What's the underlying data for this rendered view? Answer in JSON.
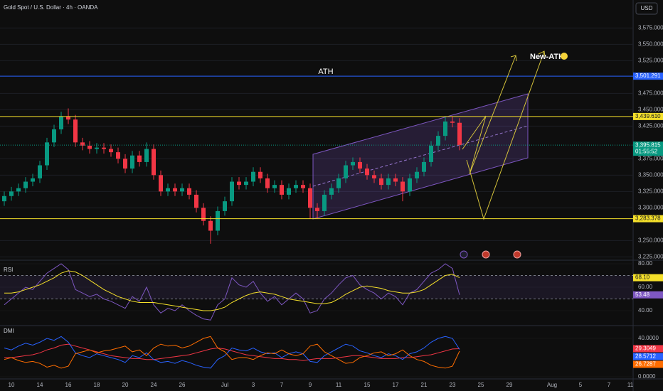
{
  "header": {
    "symbol": "Gold Spot / U.S. Dollar · 4h · OANDA",
    "currency": "USD"
  },
  "chart_data": [
    {
      "type": "candlestick",
      "categories": [
        null,
        "10",
        null,
        null,
        null,
        "14",
        null,
        null,
        null,
        "16",
        null,
        null,
        null,
        "18",
        null,
        null,
        null,
        "20",
        null,
        null,
        null,
        "24",
        null,
        null,
        null,
        "26",
        null,
        null,
        null,
        null,
        null,
        "Jul",
        null,
        null,
        null,
        "3",
        null,
        null,
        null,
        "7",
        null,
        null,
        null,
        "9",
        null,
        null,
        null,
        "11",
        null,
        null,
        null,
        "15",
        null,
        null,
        null,
        "17",
        null,
        null,
        null,
        "21",
        null,
        null,
        null,
        "23",
        null,
        null,
        null,
        "25",
        null,
        null,
        null,
        "29",
        null,
        null,
        null,
        null,
        null,
        "Aug",
        null,
        null,
        null,
        "5",
        null,
        null,
        null,
        "7",
        null,
        null,
        "11"
      ],
      "open": [
        3310,
        3318,
        3325,
        3330,
        3340,
        3345,
        3365,
        3400,
        3420,
        3440,
        3435,
        3400,
        3395,
        3390,
        3392,
        3390,
        3385,
        3375,
        3360,
        3380,
        3370,
        3390,
        3350,
        3325,
        3330,
        3325,
        3330,
        3320,
        3300,
        3280,
        3265,
        3295,
        3310,
        3340,
        3335,
        3340,
        3355,
        3345,
        3330,
        3335,
        3320,
        3330,
        3335,
        3330,
        3300,
        3295,
        3320,
        3330,
        3345,
        3365,
        3370,
        3360,
        3350,
        3345,
        3335,
        3345,
        3340,
        3325,
        3345,
        3355,
        3370,
        3395,
        3410,
        3432,
        3430,
        null,
        null,
        null,
        null,
        null,
        null,
        null,
        null,
        null,
        null,
        null,
        null,
        null,
        null,
        null,
        null,
        null,
        null,
        null,
        null,
        null,
        null,
        null,
        null
      ],
      "high": [
        3325,
        3332,
        3337,
        3347,
        3352,
        3372,
        3407,
        3427,
        3447,
        3452,
        3442,
        3407,
        3402,
        3399,
        3399,
        3397,
        3392,
        3382,
        3387,
        3387,
        3400,
        3397,
        3357,
        3337,
        3337,
        3337,
        3337,
        3327,
        3307,
        3287,
        3302,
        3317,
        3347,
        3347,
        3347,
        3362,
        3362,
        3352,
        3342,
        3342,
        3337,
        3342,
        3342,
        3337,
        3307,
        3327,
        3337,
        3352,
        3372,
        3377,
        3377,
        3367,
        3357,
        3352,
        3352,
        3352,
        3347,
        3352,
        3362,
        3377,
        3402,
        3417,
        3439,
        3439,
        3437,
        null,
        null,
        null,
        null,
        null,
        null,
        null,
        null,
        null,
        null,
        null,
        null,
        null,
        null,
        null,
        null,
        null,
        null,
        null,
        null,
        null,
        null,
        null,
        null
      ],
      "low": [
        3303,
        3311,
        3318,
        3323,
        3333,
        3338,
        3358,
        3393,
        3413,
        3428,
        3393,
        3388,
        3383,
        3383,
        3383,
        3378,
        3368,
        3353,
        3353,
        3363,
        3363,
        3343,
        3318,
        3318,
        3318,
        3318,
        3313,
        3293,
        3273,
        3245,
        3258,
        3288,
        3303,
        3328,
        3328,
        3333,
        3338,
        3323,
        3323,
        3313,
        3313,
        3323,
        3323,
        3283,
        3284,
        3288,
        3313,
        3323,
        3338,
        3358,
        3353,
        3343,
        3338,
        3328,
        3328,
        3333,
        3310,
        3318,
        3338,
        3348,
        3363,
        3388,
        3403,
        3423,
        3388,
        null,
        null,
        null,
        null,
        null,
        null,
        null,
        null,
        null,
        null,
        null,
        null,
        null,
        null,
        null,
        null,
        null,
        null,
        null,
        null,
        null,
        null,
        null,
        null
      ],
      "close": [
        3318,
        3325,
        3330,
        3340,
        3345,
        3365,
        3400,
        3420,
        3440,
        3435,
        3400,
        3395,
        3390,
        3392,
        3390,
        3385,
        3375,
        3360,
        3380,
        3370,
        3390,
        3350,
        3325,
        3330,
        3325,
        3330,
        3320,
        3300,
        3280,
        3265,
        3295,
        3310,
        3340,
        3335,
        3340,
        3355,
        3345,
        3330,
        3335,
        3320,
        3330,
        3335,
        3330,
        3300,
        3295,
        3320,
        3330,
        3345,
        3365,
        3370,
        3360,
        3350,
        3345,
        3335,
        3345,
        3340,
        3325,
        3345,
        3355,
        3370,
        3395,
        3410,
        3432,
        3430,
        3395.815,
        null,
        null,
        null,
        null,
        null,
        null,
        null,
        null,
        null,
        null,
        null,
        null,
        null,
        null,
        null,
        null,
        null,
        null,
        null,
        null,
        null,
        null,
        null,
        null
      ],
      "up_color": "#089981",
      "down_color": "#f23645",
      "ylim": [
        3221,
        3596
      ],
      "yticks": [
        {
          "value": 3575,
          "label": "3,575.000"
        },
        {
          "value": 3550,
          "label": "3,550.000"
        },
        {
          "value": 3525,
          "label": "3,525.000"
        },
        {
          "value": 3475,
          "label": "3,475.000"
        },
        {
          "value": 3450,
          "label": "3,450.000"
        },
        {
          "value": 3425,
          "label": "3,425.000"
        },
        {
          "value": 3375,
          "label": "3,375.000"
        },
        {
          "value": 3350,
          "label": "3,350.000"
        },
        {
          "value": 3325,
          "label": "3,325.000"
        },
        {
          "value": 3300,
          "label": "3,300.000"
        },
        {
          "value": 3250,
          "label": "3,250.000"
        },
        {
          "value": 3225,
          "label": "3,225.000"
        }
      ],
      "grid": true,
      "levels": [
        {
          "value": 3501.291,
          "label": "3,501.291",
          "color": "#2962ff",
          "name": "ATH"
        },
        {
          "value": 3439.61,
          "label": "3,439.610",
          "color": "#f5e02a"
        },
        {
          "value": 3395.815,
          "label": "3,395.815",
          "color": "#089981",
          "countdown": "01:55:52"
        },
        {
          "value": 3283.378,
          "label": "3,283.378",
          "color": "#f5e02a"
        }
      ],
      "annotation": "New-ATH"
    },
    {
      "type": "line",
      "title": "RSI",
      "series": [
        {
          "color": "#7e57c2",
          "values": [
            45,
            50,
            55,
            60,
            58,
            65,
            72,
            76,
            80,
            75,
            58,
            55,
            52,
            54,
            50,
            48,
            45,
            42,
            52,
            48,
            60,
            45,
            38,
            42,
            40,
            45,
            40,
            36,
            33,
            32,
            45,
            50,
            68,
            62,
            60,
            65,
            55,
            48,
            52,
            45,
            50,
            55,
            50,
            38,
            40,
            50,
            55,
            62,
            68,
            70,
            62,
            58,
            55,
            50,
            55,
            52,
            45,
            55,
            58,
            65,
            72,
            75,
            80,
            76,
            53.48,
            null,
            null,
            null,
            null,
            null,
            null,
            null,
            null,
            null,
            null,
            null,
            null,
            null,
            null,
            null,
            null,
            null,
            null,
            null,
            null,
            null,
            null,
            null,
            null
          ]
        },
        {
          "color": "#f5e02a",
          "values": [
            55,
            55,
            56,
            58,
            60,
            62,
            65,
            68,
            72,
            74,
            73,
            70,
            66,
            62,
            58,
            55,
            52,
            50,
            48,
            47,
            47,
            47,
            46,
            45,
            44,
            43,
            42,
            41,
            40,
            40,
            41,
            43,
            47,
            50,
            53,
            55,
            56,
            55,
            54,
            52,
            50,
            49,
            48,
            47,
            46,
            46,
            47,
            50,
            54,
            57,
            60,
            61,
            60,
            59,
            57,
            56,
            55,
            55,
            56,
            58,
            62,
            66,
            70,
            71,
            68.1,
            null,
            null,
            null,
            null,
            null,
            null,
            null,
            null,
            null,
            null,
            null,
            null,
            null,
            null,
            null,
            null,
            null,
            null,
            null,
            null,
            null,
            null,
            null,
            null
          ],
          "value_labels": [
            null,
            null,
            null,
            null,
            null,
            null,
            null,
            null,
            null,
            null,
            null,
            null,
            null,
            null,
            null,
            null,
            null,
            null,
            null,
            null,
            null,
            null,
            null,
            null,
            null,
            null,
            null,
            null,
            null,
            null,
            null,
            null,
            null,
            null,
            null,
            null,
            null,
            null,
            null,
            null,
            null,
            null,
            null,
            null,
            null,
            null,
            null,
            null,
            null,
            null,
            null,
            null,
            null,
            null,
            null,
            null,
            null,
            null,
            null,
            null,
            null,
            null,
            null,
            null,
            "68.10",
            null,
            null,
            null,
            null,
            null,
            null,
            null,
            null,
            null,
            null,
            null,
            null,
            null,
            null,
            null,
            null,
            null,
            null,
            null,
            null,
            null,
            null,
            null,
            null
          ]
        }
      ],
      "ylim": [
        27.3,
        83
      ],
      "yticks": [
        {
          "value": 80,
          "label": "80.00"
        },
        {
          "value": 60,
          "label": "60.00"
        },
        {
          "value": 40,
          "label": "40.00"
        }
      ],
      "bands": [
        70,
        50
      ]
    },
    {
      "type": "line",
      "title": "DMI",
      "series": [
        {
          "color": "#f23645",
          "values": [
            20,
            20,
            21,
            22,
            23,
            25,
            28,
            30,
            33,
            34,
            32,
            30,
            28,
            26,
            24,
            22,
            21,
            20,
            19,
            19,
            18,
            18,
            19,
            20,
            21,
            22,
            23,
            25,
            27,
            29,
            30,
            29,
            27,
            25,
            23,
            22,
            21,
            20,
            19,
            19,
            18,
            18,
            17,
            18,
            19,
            19,
            19,
            20,
            21,
            22,
            22,
            21,
            20,
            19,
            19,
            19,
            20,
            20,
            21,
            22,
            23,
            25,
            27,
            29,
            29.3049,
            null,
            null,
            null,
            null,
            null,
            null,
            null,
            null,
            null,
            null,
            null,
            null,
            null,
            null,
            null,
            null,
            null,
            null,
            null,
            null,
            null,
            null,
            null,
            null
          ]
        },
        {
          "color": "#2962ff",
          "values": [
            30,
            28,
            32,
            35,
            33,
            36,
            40,
            38,
            42,
            36,
            25,
            22,
            20,
            24,
            22,
            20,
            18,
            15,
            22,
            20,
            25,
            18,
            15,
            16,
            14,
            17,
            15,
            12,
            10,
            9,
            18,
            22,
            30,
            28,
            27,
            30,
            26,
            24,
            25,
            20,
            24,
            26,
            24,
            16,
            15,
            22,
            26,
            30,
            34,
            32,
            27,
            25,
            22,
            20,
            24,
            22,
            18,
            24,
            26,
            30,
            36,
            40,
            42,
            40,
            28.5712,
            null,
            null,
            null,
            null,
            null,
            null,
            null,
            null,
            null,
            null,
            null,
            null,
            null,
            null,
            null,
            null,
            null,
            null,
            null,
            null,
            null,
            null,
            null,
            null
          ]
        },
        {
          "color": "#ff6d00",
          "values": [
            18,
            20,
            17,
            15,
            16,
            14,
            10,
            12,
            9,
            11,
            24,
            26,
            28,
            25,
            27,
            28,
            30,
            32,
            26,
            28,
            22,
            30,
            34,
            32,
            33,
            30,
            32,
            36,
            40,
            42,
            30,
            26,
            18,
            20,
            20,
            18,
            22,
            25,
            24,
            28,
            24,
            22,
            24,
            32,
            34,
            26,
            22,
            18,
            14,
            15,
            20,
            22,
            25,
            26,
            22,
            24,
            28,
            22,
            18,
            16,
            12,
            10,
            9,
            11,
            26.7287,
            null,
            null,
            null,
            null,
            null,
            null,
            null,
            null,
            null,
            null,
            null,
            null,
            null,
            null,
            null,
            null,
            null,
            null,
            null,
            null,
            null,
            null,
            null,
            null
          ]
        }
      ],
      "ylim": [
        -1.5,
        51.9
      ],
      "yticks": [
        {
          "value": 40,
          "label": "40.0000"
        },
        {
          "value": 0,
          "label": "0.0000"
        }
      ]
    }
  ]
}
